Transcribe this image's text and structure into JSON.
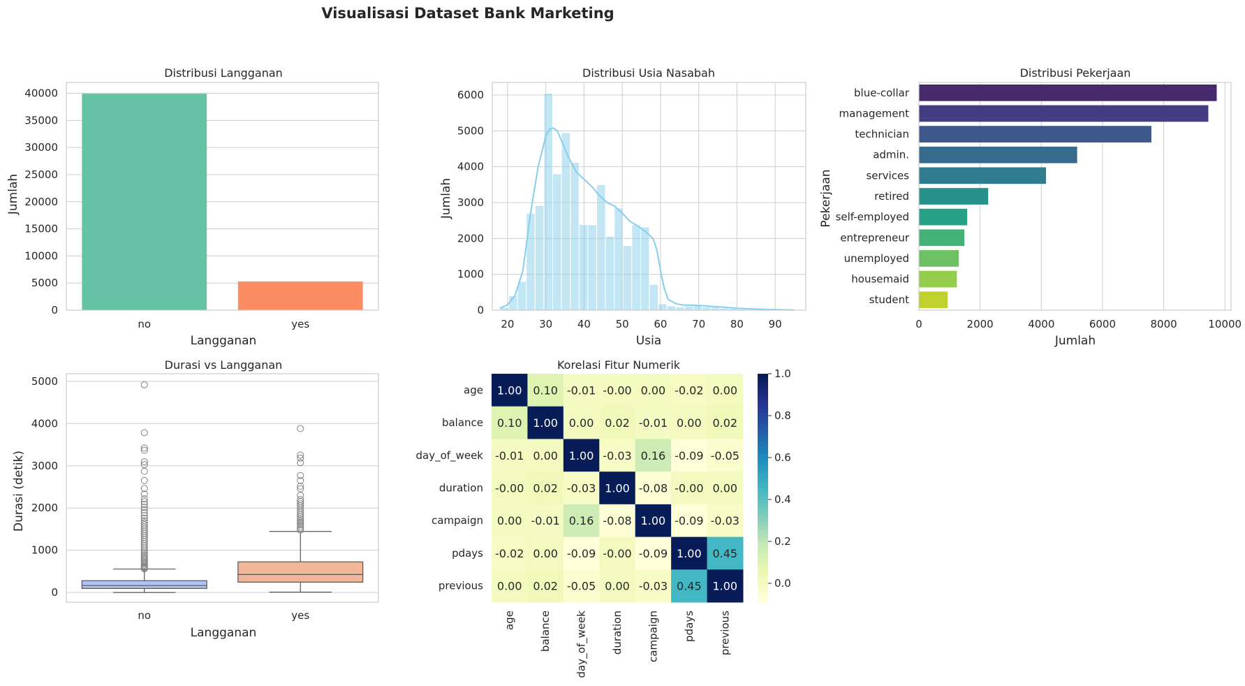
{
  "figure": {
    "suptitle": "Visualisasi Dataset Bank Marketing"
  },
  "chart_data": [
    {
      "id": "subscription",
      "type": "bar",
      "title": "Distribusi Langganan",
      "xlabel": "Langganan",
      "ylabel": "Jumlah",
      "categories": [
        "no",
        "yes"
      ],
      "values": [
        39922,
        5289
      ],
      "colors": [
        "#66c2a5",
        "#fc8d62"
      ],
      "ylim": [
        0,
        42000
      ],
      "yticks": [
        0,
        5000,
        10000,
        15000,
        20000,
        25000,
        30000,
        35000,
        40000
      ],
      "grid": true
    },
    {
      "id": "age",
      "type": "bar",
      "subtype": "histogram-with-kde",
      "title": "Distribusi Usia Nasabah",
      "xlabel": "Usia",
      "ylabel": "Jumlah",
      "xlim": [
        16,
        98
      ],
      "ylim": [
        0,
        6350
      ],
      "xticks": [
        20,
        30,
        40,
        50,
        60,
        70,
        80,
        90
      ],
      "yticks": [
        0,
        1000,
        2000,
        3000,
        4000,
        5000,
        6000
      ],
      "bin_start": 18,
      "bin_width": 2.3,
      "values": [
        80,
        400,
        800,
        2700,
        2920,
        6050,
        3800,
        4950,
        4120,
        2390,
        2380,
        3500,
        2060,
        2850,
        1800,
        2380,
        2320,
        720,
        180,
        120,
        90,
        120,
        130,
        100,
        90,
        60,
        50,
        30,
        20,
        15,
        10,
        10,
        5,
        3
      ],
      "kde_x": [
        18,
        20,
        22,
        24,
        26,
        28,
        30,
        31,
        32,
        33,
        34,
        36,
        38,
        40,
        42,
        44,
        46,
        48,
        50,
        52,
        54,
        56,
        58,
        59,
        60,
        61,
        62,
        64,
        66,
        68,
        70,
        72,
        74,
        76,
        78,
        80,
        84,
        88,
        92,
        95
      ],
      "kde_y": [
        50,
        150,
        420,
        1100,
        2700,
        4000,
        4850,
        5050,
        5080,
        5000,
        4750,
        4250,
        3850,
        3650,
        3450,
        3200,
        3000,
        2900,
        2700,
        2480,
        2350,
        2200,
        2000,
        1700,
        1100,
        600,
        300,
        180,
        140,
        140,
        130,
        120,
        100,
        90,
        70,
        55,
        35,
        20,
        10,
        5
      ],
      "bar_color": "#87ceeb",
      "line_color": "#87ceeb",
      "grid": true
    },
    {
      "id": "job",
      "type": "bar",
      "orientation": "horizontal",
      "title": "Distribusi Pekerjaan",
      "xlabel": "Jumlah",
      "ylabel": "Pekerjaan",
      "categories": [
        "blue-collar",
        "management",
        "technician",
        "admin.",
        "services",
        "retired",
        "self-employed",
        "entrepreneur",
        "unemployed",
        "housemaid",
        "student"
      ],
      "values": [
        9732,
        9458,
        7597,
        5171,
        4154,
        2264,
        1579,
        1487,
        1303,
        1240,
        938
      ],
      "colors": [
        "#472a6e",
        "#433d83",
        "#3f588b",
        "#376b8d",
        "#2e7c8d",
        "#27918b",
        "#26a185",
        "#43b277",
        "#6cc162",
        "#94cd4c",
        "#c0d02d"
      ],
      "xlim": [
        0,
        10200
      ],
      "xticks": [
        0,
        2000,
        4000,
        6000,
        8000,
        10000
      ],
      "grid": true
    },
    {
      "id": "duration",
      "type": "boxplot",
      "title": "Durasi vs Langganan",
      "xlabel": "Langganan",
      "ylabel": "Durasi (detik)",
      "categories": [
        "no",
        "yes"
      ],
      "ylim": [
        -230,
        5180
      ],
      "yticks": [
        0,
        1000,
        2000,
        3000,
        4000,
        5000
      ],
      "boxes": [
        {
          "category": "no",
          "min": 0,
          "q1": 95,
          "median": 164,
          "q3": 279,
          "max": 555,
          "color": "#aec2f3",
          "outliers": [
            3784,
            3422,
            3366,
            3094,
            3025,
            2870,
            2653,
            2462,
            2330,
            2219,
            2150,
            2087,
            2015,
            1960,
            1890,
            1820,
            1760,
            1700,
            1650,
            1600,
            1550,
            1500,
            1450,
            1400,
            1350,
            1300,
            1250,
            1200,
            1150,
            1100,
            1050,
            1000,
            960,
            920,
            880,
            840,
            800,
            770,
            740,
            710,
            680,
            650,
            620,
            600,
            580,
            560,
            4918
          ]
        },
        {
          "category": "yes",
          "min": 8,
          "q1": 244,
          "median": 426,
          "q3": 725,
          "max": 1445,
          "color": "#f3b698",
          "outliers": [
            3881,
            3253,
            3183,
            3076,
            2769,
            2653,
            2516,
            2456,
            2301,
            2200,
            2150,
            2100,
            2050,
            2000,
            1950,
            1900,
            1850,
            1800,
            1760,
            1720,
            1680,
            1640,
            1600,
            1560,
            1520,
            1480
          ]
        }
      ],
      "grid": true
    },
    {
      "id": "correlation",
      "type": "heatmap",
      "title": "Korelasi Fitur Numerik",
      "labels": [
        "age",
        "balance",
        "day_of_week",
        "duration",
        "campaign",
        "pdays",
        "previous"
      ],
      "matrix": [
        [
          1.0,
          0.1,
          -0.01,
          -0.0,
          0.0,
          -0.02,
          0.0
        ],
        [
          0.1,
          1.0,
          0.0,
          0.02,
          -0.01,
          0.0,
          0.02
        ],
        [
          -0.01,
          0.0,
          1.0,
          -0.03,
          0.16,
          -0.09,
          -0.05
        ],
        [
          -0.0,
          0.02,
          -0.03,
          1.0,
          -0.08,
          -0.0,
          0.0
        ],
        [
          0.0,
          -0.01,
          0.16,
          -0.08,
          1.0,
          -0.09,
          -0.03
        ],
        [
          -0.02,
          0.0,
          -0.09,
          -0.0,
          -0.09,
          1.0,
          0.45
        ],
        [
          0.0,
          0.02,
          -0.05,
          0.0,
          -0.03,
          0.45,
          1.0
        ]
      ],
      "cell_labels": [
        [
          "1.00",
          "0.10",
          "-0.01",
          "-0.00",
          "0.00",
          "-0.02",
          "0.00"
        ],
        [
          "0.10",
          "1.00",
          "0.00",
          "0.02",
          "-0.01",
          "0.00",
          "0.02"
        ],
        [
          "-0.01",
          "0.00",
          "1.00",
          "-0.03",
          "0.16",
          "-0.09",
          "-0.05"
        ],
        [
          "-0.00",
          "0.02",
          "-0.03",
          "1.00",
          "-0.08",
          "-0.00",
          "0.00"
        ],
        [
          "0.00",
          "-0.01",
          "0.16",
          "-0.08",
          "1.00",
          "-0.09",
          "-0.03"
        ],
        [
          "-0.02",
          "0.00",
          "-0.09",
          "-0.00",
          "-0.09",
          "1.00",
          "0.45"
        ],
        [
          "0.00",
          "0.02",
          "-0.05",
          "0.00",
          "-0.03",
          "0.45",
          "1.00"
        ]
      ],
      "colormap": "YlGnBu",
      "vmin": -0.09,
      "vmax": 1.0,
      "colorbar_ticks": [
        "1.0",
        "0.8",
        "0.6",
        "0.4",
        "0.2",
        "0.0"
      ],
      "colorbar_tick_values": [
        1.0,
        0.8,
        0.6,
        0.4,
        0.2,
        0.0
      ]
    }
  ]
}
